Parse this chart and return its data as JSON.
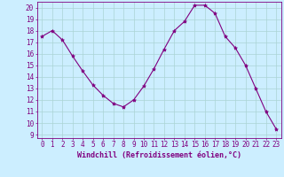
{
  "x": [
    0,
    1,
    2,
    3,
    4,
    5,
    6,
    7,
    8,
    9,
    10,
    11,
    12,
    13,
    14,
    15,
    16,
    17,
    18,
    19,
    20,
    21,
    22,
    23
  ],
  "y": [
    17.5,
    18.0,
    17.2,
    15.8,
    14.5,
    13.3,
    12.4,
    11.7,
    11.4,
    12.0,
    13.2,
    14.7,
    16.4,
    18.0,
    18.8,
    20.2,
    20.2,
    19.5,
    17.5,
    16.5,
    15.0,
    13.0,
    11.0,
    9.5
  ],
  "line_color": "#800080",
  "marker": "*",
  "marker_size": 3,
  "bg_color": "#cceeff",
  "grid_color": "#aad4d4",
  "xlabel": "Windchill (Refroidissement éolien,°C)",
  "ylabel": "",
  "title": "",
  "xlim": [
    -0.5,
    23.5
  ],
  "ylim": [
    8.7,
    20.5
  ],
  "yticks": [
    9,
    10,
    11,
    12,
    13,
    14,
    15,
    16,
    17,
    18,
    19,
    20
  ],
  "xticks": [
    0,
    1,
    2,
    3,
    4,
    5,
    6,
    7,
    8,
    9,
    10,
    11,
    12,
    13,
    14,
    15,
    16,
    17,
    18,
    19,
    20,
    21,
    22,
    23
  ],
  "label_color": "#800080",
  "tick_color": "#800080",
  "font_size": 5.5,
  "xlabel_fontsize": 6.0
}
